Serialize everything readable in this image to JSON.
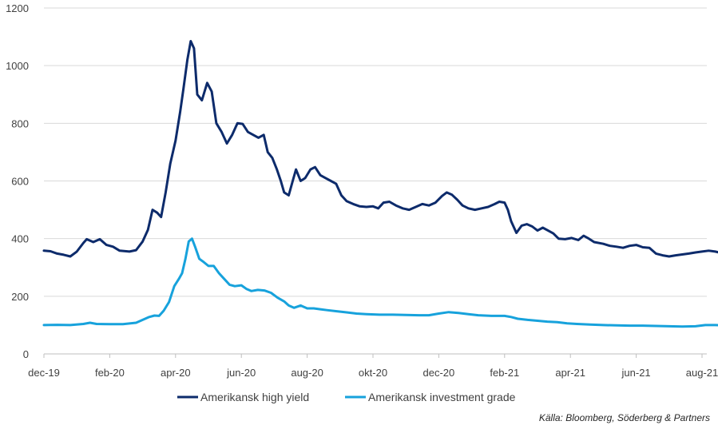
{
  "chart_data": {
    "type": "line",
    "ylim": [
      0,
      1200
    ],
    "yticks": [
      "0",
      "200",
      "400",
      "600",
      "800",
      "1000",
      "1200"
    ],
    "xticks": [
      "dec-19",
      "feb-20",
      "apr-20",
      "jun-20",
      "aug-20",
      "okt-20",
      "dec-20",
      "feb-21",
      "apr-21",
      "jun-21",
      "aug-21"
    ],
    "grid": true,
    "legend_position": "bottom",
    "series": [
      {
        "name": "Amerikansk high yield",
        "color": "#0d2b6b",
        "points": [
          [
            0.0,
            358
          ],
          [
            0.1,
            356
          ],
          [
            0.2,
            348
          ],
          [
            0.3,
            344
          ],
          [
            0.4,
            338
          ],
          [
            0.5,
            355
          ],
          [
            0.6,
            385
          ],
          [
            0.65,
            398
          ],
          [
            0.75,
            388
          ],
          [
            0.85,
            398
          ],
          [
            0.95,
            378
          ],
          [
            1.05,
            372
          ],
          [
            1.15,
            358
          ],
          [
            1.3,
            355
          ],
          [
            1.4,
            360
          ],
          [
            1.5,
            390
          ],
          [
            1.58,
            430
          ],
          [
            1.65,
            500
          ],
          [
            1.72,
            490
          ],
          [
            1.78,
            475
          ],
          [
            1.85,
            560
          ],
          [
            1.92,
            660
          ],
          [
            2.0,
            740
          ],
          [
            2.07,
            840
          ],
          [
            2.12,
            920
          ],
          [
            2.18,
            1020
          ],
          [
            2.23,
            1085
          ],
          [
            2.28,
            1060
          ],
          [
            2.33,
            900
          ],
          [
            2.4,
            880
          ],
          [
            2.48,
            940
          ],
          [
            2.55,
            910
          ],
          [
            2.62,
            800
          ],
          [
            2.7,
            770
          ],
          [
            2.78,
            730
          ],
          [
            2.86,
            760
          ],
          [
            2.94,
            800
          ],
          [
            3.02,
            798
          ],
          [
            3.1,
            770
          ],
          [
            3.18,
            760
          ],
          [
            3.26,
            750
          ],
          [
            3.34,
            760
          ],
          [
            3.4,
            700
          ],
          [
            3.47,
            680
          ],
          [
            3.54,
            640
          ],
          [
            3.6,
            600
          ],
          [
            3.65,
            560
          ],
          [
            3.72,
            550
          ],
          [
            3.78,
            600
          ],
          [
            3.83,
            640
          ],
          [
            3.9,
            600
          ],
          [
            3.97,
            610
          ],
          [
            4.05,
            640
          ],
          [
            4.12,
            648
          ],
          [
            4.2,
            620
          ],
          [
            4.28,
            610
          ],
          [
            4.36,
            600
          ],
          [
            4.44,
            590
          ],
          [
            4.52,
            550
          ],
          [
            4.6,
            530
          ],
          [
            4.7,
            520
          ],
          [
            4.8,
            512
          ],
          [
            4.9,
            510
          ],
          [
            5.0,
            512
          ],
          [
            5.08,
            505
          ],
          [
            5.16,
            525
          ],
          [
            5.25,
            528
          ],
          [
            5.35,
            515
          ],
          [
            5.45,
            505
          ],
          [
            5.55,
            500
          ],
          [
            5.65,
            510
          ],
          [
            5.75,
            520
          ],
          [
            5.85,
            515
          ],
          [
            5.95,
            525
          ],
          [
            6.05,
            548
          ],
          [
            6.12,
            560
          ],
          [
            6.2,
            552
          ],
          [
            6.28,
            535
          ],
          [
            6.36,
            515
          ],
          [
            6.45,
            505
          ],
          [
            6.55,
            500
          ],
          [
            6.65,
            505
          ],
          [
            6.75,
            510
          ],
          [
            6.85,
            520
          ],
          [
            6.92,
            528
          ],
          [
            7.0,
            525
          ],
          [
            7.05,
            500
          ],
          [
            7.1,
            460
          ],
          [
            7.18,
            420
          ],
          [
            7.26,
            445
          ],
          [
            7.34,
            450
          ],
          [
            7.42,
            442
          ],
          [
            7.5,
            428
          ],
          [
            7.58,
            438
          ],
          [
            7.66,
            428
          ],
          [
            7.74,
            418
          ],
          [
            7.82,
            400
          ],
          [
            7.92,
            398
          ],
          [
            8.02,
            402
          ],
          [
            8.12,
            395
          ],
          [
            8.2,
            410
          ],
          [
            8.28,
            400
          ],
          [
            8.36,
            388
          ],
          [
            8.5,
            382
          ],
          [
            8.6,
            375
          ],
          [
            8.7,
            372
          ],
          [
            8.8,
            368
          ],
          [
            8.9,
            375
          ],
          [
            9.0,
            378
          ],
          [
            9.1,
            370
          ],
          [
            9.2,
            368
          ],
          [
            9.3,
            348
          ],
          [
            9.4,
            342
          ],
          [
            9.5,
            338
          ],
          [
            9.6,
            342
          ],
          [
            9.7,
            345
          ],
          [
            9.8,
            348
          ],
          [
            9.9,
            352
          ],
          [
            10.0,
            355
          ],
          [
            10.1,
            358
          ],
          [
            10.2,
            355
          ],
          [
            10.3,
            350
          ],
          [
            10.4,
            345
          ],
          [
            10.5,
            358
          ],
          [
            10.6,
            350
          ],
          [
            10.7,
            338
          ],
          [
            10.8,
            330
          ],
          [
            10.9,
            325
          ],
          [
            11.0,
            322
          ],
          [
            11.1,
            325
          ],
          [
            11.2,
            328
          ],
          [
            11.3,
            325
          ],
          [
            11.4,
            322
          ],
          [
            11.5,
            328
          ],
          [
            11.6,
            326
          ],
          [
            11.7,
            330
          ],
          [
            11.8,
            330
          ],
          [
            11.9,
            332
          ],
          [
            12.0,
            334
          ],
          [
            12.1,
            330
          ],
          [
            12.2,
            325
          ],
          [
            12.3,
            320
          ],
          [
            12.4,
            318
          ],
          [
            12.5,
            315
          ],
          [
            12.6,
            312
          ],
          [
            12.7,
            302
          ],
          [
            12.8,
            300
          ],
          [
            12.9,
            298
          ],
          [
            13.0,
            302
          ],
          [
            13.1,
            312
          ],
          [
            13.2,
            335
          ],
          [
            13.28,
            318
          ],
          [
            13.36,
            325
          ],
          [
            13.44,
            328
          ],
          [
            13.52,
            336
          ],
          [
            13.6,
            330
          ],
          [
            13.7,
            332
          ],
          [
            13.8,
            335
          ],
          [
            13.9,
            330
          ],
          [
            14.0,
            320
          ],
          [
            14.1,
            308
          ],
          [
            14.2,
            310
          ]
        ]
      },
      {
        "name": "Amerikansk investment grade",
        "color": "#17a2dc",
        "points": [
          [
            0.0,
            100
          ],
          [
            0.2,
            101
          ],
          [
            0.4,
            100
          ],
          [
            0.6,
            104
          ],
          [
            0.7,
            108
          ],
          [
            0.8,
            104
          ],
          [
            1.0,
            103
          ],
          [
            1.2,
            103
          ],
          [
            1.4,
            108
          ],
          [
            1.5,
            118
          ],
          [
            1.6,
            128
          ],
          [
            1.68,
            133
          ],
          [
            1.75,
            132
          ],
          [
            1.82,
            150
          ],
          [
            1.9,
            180
          ],
          [
            1.98,
            235
          ],
          [
            2.05,
            260
          ],
          [
            2.1,
            280
          ],
          [
            2.15,
            330
          ],
          [
            2.2,
            390
          ],
          [
            2.25,
            400
          ],
          [
            2.3,
            370
          ],
          [
            2.36,
            330
          ],
          [
            2.42,
            320
          ],
          [
            2.5,
            305
          ],
          [
            2.58,
            305
          ],
          [
            2.66,
            280
          ],
          [
            2.74,
            260
          ],
          [
            2.82,
            240
          ],
          [
            2.9,
            235
          ],
          [
            3.0,
            238
          ],
          [
            3.08,
            225
          ],
          [
            3.15,
            218
          ],
          [
            3.25,
            222
          ],
          [
            3.35,
            220
          ],
          [
            3.45,
            212
          ],
          [
            3.55,
            195
          ],
          [
            3.65,
            182
          ],
          [
            3.72,
            168
          ],
          [
            3.8,
            160
          ],
          [
            3.9,
            168
          ],
          [
            4.0,
            158
          ],
          [
            4.1,
            158
          ],
          [
            4.2,
            155
          ],
          [
            4.3,
            152
          ],
          [
            4.45,
            148
          ],
          [
            4.6,
            144
          ],
          [
            4.75,
            140
          ],
          [
            4.9,
            138
          ],
          [
            5.1,
            136
          ],
          [
            5.3,
            136
          ],
          [
            5.5,
            135
          ],
          [
            5.7,
            134
          ],
          [
            5.85,
            134
          ],
          [
            6.0,
            140
          ],
          [
            6.15,
            145
          ],
          [
            6.3,
            142
          ],
          [
            6.45,
            138
          ],
          [
            6.6,
            134
          ],
          [
            6.8,
            132
          ],
          [
            7.0,
            132
          ],
          [
            7.1,
            128
          ],
          [
            7.2,
            122
          ],
          [
            7.35,
            118
          ],
          [
            7.5,
            115
          ],
          [
            7.65,
            112
          ],
          [
            7.8,
            110
          ],
          [
            7.95,
            106
          ],
          [
            8.1,
            104
          ],
          [
            8.3,
            102
          ],
          [
            8.5,
            100
          ],
          [
            8.7,
            99
          ],
          [
            8.9,
            98
          ],
          [
            9.1,
            98
          ],
          [
            9.3,
            97
          ],
          [
            9.5,
            96
          ],
          [
            9.7,
            95
          ],
          [
            9.9,
            96
          ],
          [
            10.05,
            100
          ],
          [
            10.2,
            100
          ],
          [
            10.35,
            99
          ],
          [
            10.5,
            98
          ],
          [
            10.7,
            96
          ],
          [
            10.9,
            94
          ],
          [
            11.1,
            94
          ],
          [
            11.3,
            93
          ],
          [
            11.5,
            93
          ],
          [
            11.7,
            92
          ],
          [
            11.9,
            91
          ],
          [
            12.1,
            91
          ],
          [
            12.3,
            90
          ],
          [
            12.5,
            89
          ],
          [
            12.7,
            89
          ],
          [
            12.9,
            88
          ],
          [
            13.1,
            90
          ],
          [
            13.3,
            91
          ],
          [
            13.5,
            92
          ],
          [
            13.7,
            93
          ],
          [
            13.9,
            92
          ],
          [
            14.05,
            92
          ],
          [
            14.2,
            91
          ]
        ]
      }
    ]
  },
  "source": "Källa: Bloomberg, Söderberg & Partners"
}
